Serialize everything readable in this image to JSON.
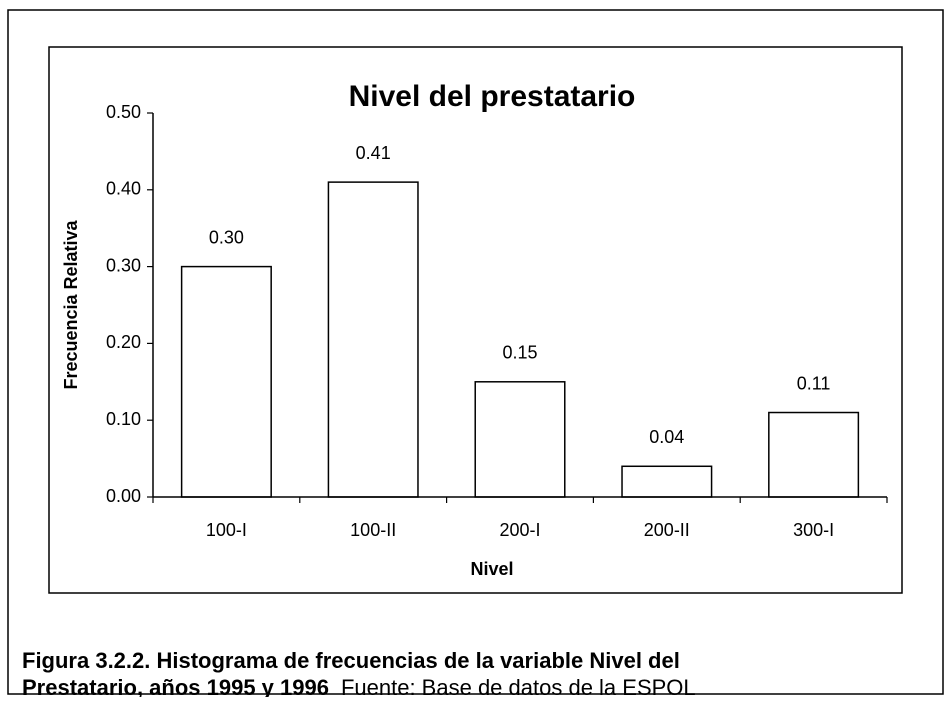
{
  "chart_data": {
    "type": "bar",
    "title": "Nivel del prestatario",
    "x_label": "Nivel",
    "y_label": "Frecuencia Relativa",
    "categories": [
      "100-I",
      "100-II",
      "200-I",
      "200-II",
      "300-I"
    ],
    "values": [
      0.3,
      0.41,
      0.15,
      0.04,
      0.11
    ],
    "value_labels": [
      "0.30",
      "0.41",
      "0.15",
      "0.04",
      "0.11"
    ],
    "color": "#ffffff",
    "ylim": [
      0,
      0.5
    ],
    "yticks": [
      {
        "value": 0,
        "label": "0.00"
      },
      {
        "value": 0.1,
        "label": "0.10"
      },
      {
        "value": 0.2,
        "label": "0.20"
      },
      {
        "value": 0.3,
        "label": "0.30"
      },
      {
        "value": 0.4,
        "label": "0.40"
      },
      {
        "value": 0.5,
        "label": "0.50"
      }
    ],
    "grid": false
  },
  "caption": {
    "lines": [
      "Figura 3.2.2. Histograma de frecuencias de la variable Nivel del",
      "Prestatario, años 1995 y 1996"
    ],
    "source": "Fuente: Base de datos de la ESPOL"
  }
}
